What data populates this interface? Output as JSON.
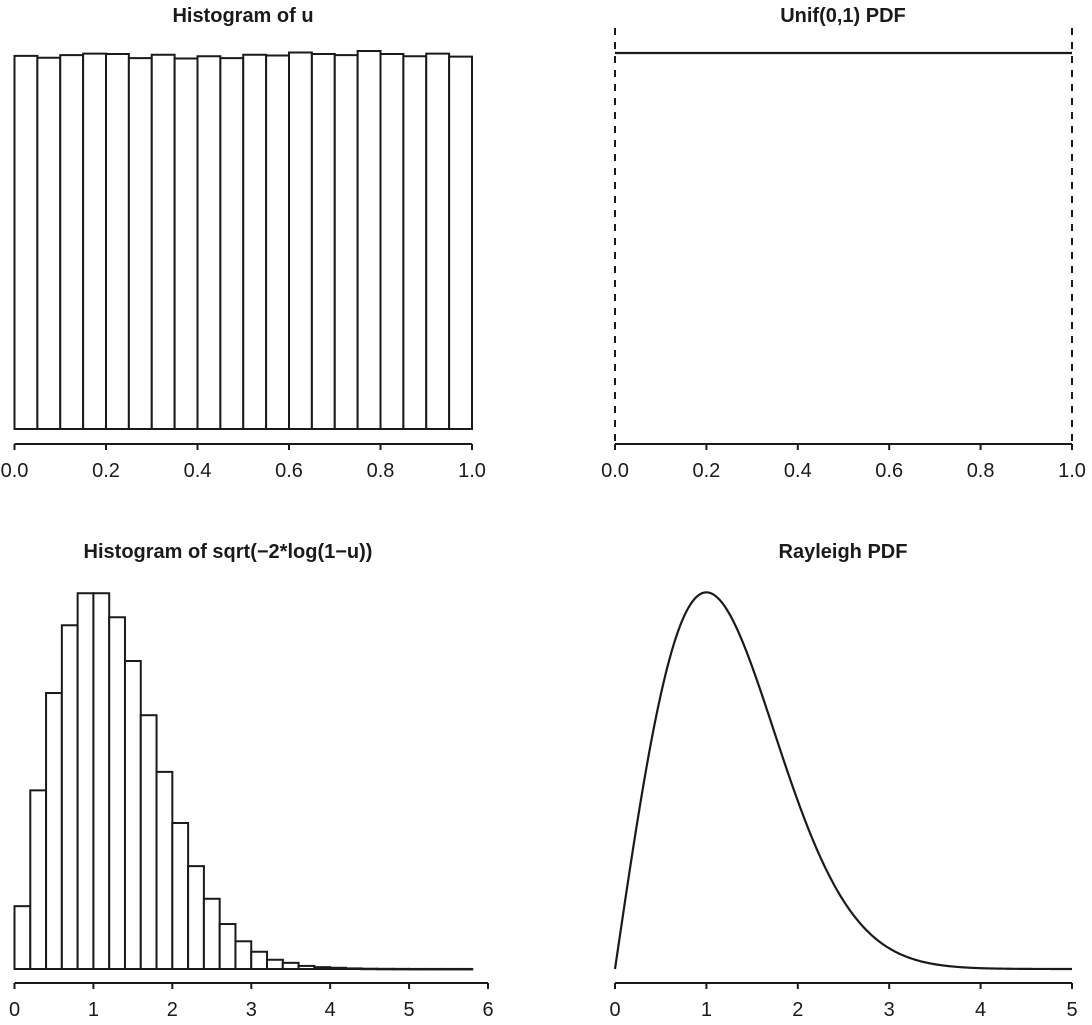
{
  "chart_data": [
    {
      "type": "bar",
      "title": "Histogram of u",
      "xlabel": "",
      "ylabel": "",
      "xlim": [
        0,
        1
      ],
      "x_ticks": [
        "0.0",
        "0.2",
        "0.4",
        "0.6",
        "0.8",
        "1.0"
      ],
      "bin_width": 0.05,
      "bin_start": 0,
      "values": [
        0.999,
        0.994,
        1.001,
        1.005,
        1.004,
        0.993,
        1.002,
        0.992,
        0.998,
        0.993,
        1.002,
        1.0,
        1.008,
        1.004,
        1.001,
        1.012,
        1.004,
        0.998,
        1.005,
        0.997
      ],
      "grid": false,
      "y_axis_shown": false
    },
    {
      "type": "line",
      "title": "Unif(0,1) PDF",
      "xlabel": "",
      "ylabel": "",
      "xlim": [
        0,
        1
      ],
      "x_ticks": [
        "0.0",
        "0.2",
        "0.4",
        "0.6",
        "0.8",
        "1.0"
      ],
      "series": [
        {
          "x": [
            0,
            1
          ],
          "y": [
            1,
            1
          ]
        }
      ],
      "vertical_dashed_lines_at": [
        0,
        1
      ],
      "grid": false,
      "y_axis_shown": false
    },
    {
      "type": "bar",
      "title": "Histogram of sqrt(−2*log(1−u))",
      "xlabel": "",
      "ylabel": "",
      "xlim": [
        0,
        6
      ],
      "x_ticks": [
        "0",
        "1",
        "2",
        "3",
        "4",
        "5",
        "6"
      ],
      "bin_width": 0.2,
      "bin_start": 0,
      "values": [
        0.102,
        0.29,
        0.448,
        0.558,
        0.61,
        0.61,
        0.571,
        0.5,
        0.412,
        0.32,
        0.237,
        0.167,
        0.114,
        0.073,
        0.045,
        0.028,
        0.015,
        0.01,
        0.005,
        0.003,
        0.002,
        0.001,
        0.0005,
        0.0003,
        0.0002,
        0.0001,
        0.0001,
        0.0001,
        0.0001
      ],
      "grid": false,
      "y_axis_shown": false
    },
    {
      "type": "line",
      "title": "Rayleigh PDF",
      "xlabel": "",
      "ylabel": "",
      "xlim": [
        0,
        5
      ],
      "x_ticks": [
        "0",
        "1",
        "2",
        "3",
        "4",
        "5"
      ],
      "function": "x*exp(-x^2/2)",
      "peak": {
        "x": 1,
        "y": 0.607
      },
      "grid": false,
      "y_axis_shown": false
    }
  ],
  "colors": {
    "ink": "#1a1a1a",
    "background": "#ffffff",
    "bar_fill": "#ffffff"
  }
}
